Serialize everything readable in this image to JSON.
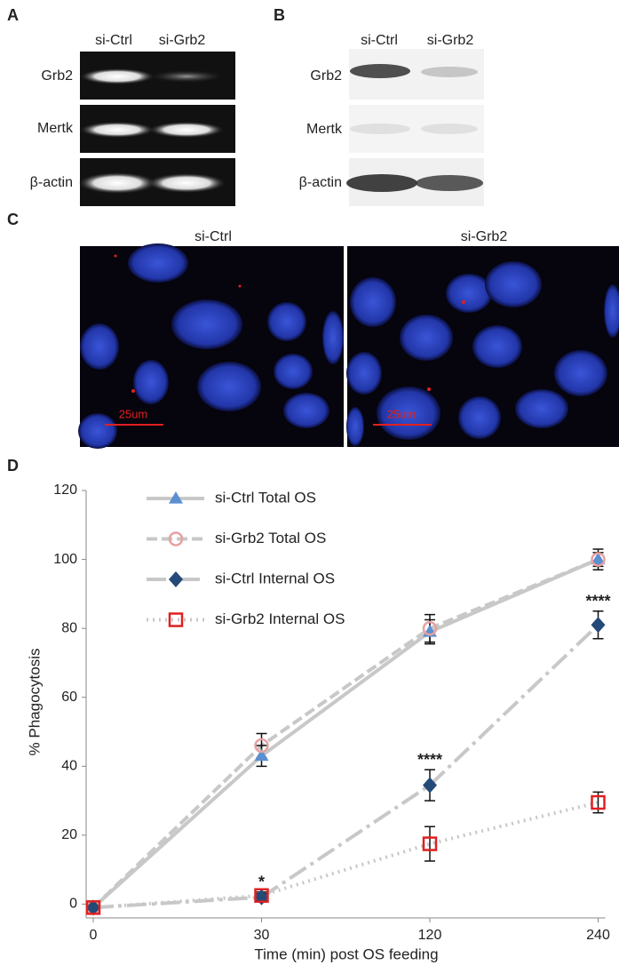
{
  "panel_a": {
    "label": "A",
    "columns": [
      "si-Ctrl",
      "si-Grb2"
    ],
    "rows": [
      "Grb2",
      "Mertk",
      "β-actin"
    ]
  },
  "panel_b": {
    "label": "B",
    "columns": [
      "si-Ctrl",
      "si-Grb2"
    ],
    "rows": [
      "Grb2",
      "Mertk",
      "β-actin"
    ]
  },
  "panel_c": {
    "label": "C",
    "titles": [
      "si-Ctrl",
      "si-Grb2"
    ],
    "scale_bar": "25um"
  },
  "panel_d": {
    "label": "D"
  },
  "chart_data": {
    "type": "line",
    "xlabel": "Time (min) post OS feeding",
    "ylabel": "% Phagocytosis",
    "categories": [
      "0",
      "30",
      "120",
      "240"
    ],
    "ylim": [
      -4,
      120
    ],
    "yticks": [
      0,
      20,
      40,
      60,
      80,
      100,
      120
    ],
    "legend": "upper left",
    "series": [
      {
        "name": "si-Ctrl Total OS",
        "color": "#5b8fd0",
        "marker": "triangle",
        "line_style": "solid",
        "values": [
          -1,
          43,
          79,
          100
        ],
        "errors": [
          1,
          3,
          3.5,
          2
        ]
      },
      {
        "name": "si-Grb2 Total OS",
        "color": "#e8a0a0",
        "marker": "circle",
        "line_style": "dashed",
        "values": [
          -1,
          46,
          80,
          100
        ],
        "errors": [
          1,
          3.5,
          4,
          3
        ]
      },
      {
        "name": "si-Ctrl Internal OS",
        "color": "#234a78",
        "marker": "diamond",
        "line_style": "dashdot",
        "values": [
          -1,
          2,
          34.5,
          81
        ],
        "errors": [
          1,
          1,
          4.5,
          4
        ]
      },
      {
        "name": "si-Grb2 Internal OS",
        "color": "#e02020",
        "marker": "square",
        "line_style": "dotted",
        "values": [
          -1,
          2.5,
          17.5,
          29.5
        ],
        "errors": [
          1,
          1,
          5,
          3
        ]
      }
    ],
    "annotations": [
      {
        "text": "*",
        "x": "30"
      },
      {
        "text": "****",
        "x": "120"
      },
      {
        "text": "****",
        "x": "240"
      }
    ]
  }
}
